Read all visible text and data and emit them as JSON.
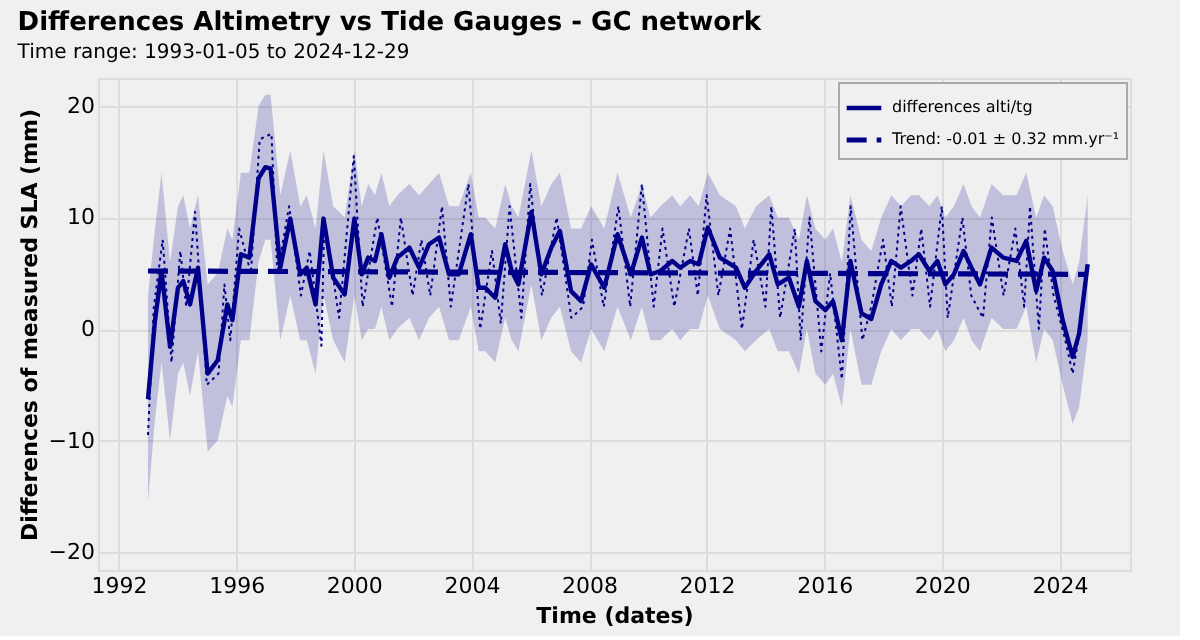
{
  "chart_data": {
    "type": "line",
    "title": "Differences Altimetry vs Tide Gauges - GC network",
    "subtitle": "Time range: 1993-01-05 to 2024-12-29",
    "xlabel": "Time (dates)",
    "ylabel": "Differences of measured SLA (mm)",
    "xlim": [
      1991.3,
      2026.4
    ],
    "xticks": [
      1992,
      1996,
      2000,
      2004,
      2008,
      2012,
      2016,
      2020,
      2024
    ],
    "ylim": [
      -21.6,
      22.5
    ],
    "yticks": [
      -20,
      -10,
      0,
      10,
      20
    ],
    "grid": true,
    "legend": "top right",
    "series": [
      {
        "name": null,
        "line_style": "dotted",
        "color": "#00008b",
        "x": [
          1993.0,
          1993.2,
          1993.5,
          1993.8,
          1994.1,
          1994.3,
          1994.6,
          1995.0,
          1995.4,
          1995.6,
          1995.8,
          1996.1,
          1996.5,
          1996.8,
          1997.2,
          1997.4,
          1997.8,
          1998.2,
          1998.5,
          1998.9,
          1999.0,
          1999.5,
          2000.0,
          2000.3,
          2000.8,
          2001.3,
          2001.6,
          2002.0,
          2002.3,
          2002.6,
          2003.0,
          2003.3,
          2003.9,
          2004.3,
          2004.7,
          2005.0,
          2005.3,
          2005.7,
          2006.0,
          2006.4,
          2006.9,
          2007.4,
          2007.8,
          2008.1,
          2008.5,
          2009.0,
          2009.4,
          2009.8,
          2010.2,
          2010.5,
          2010.9,
          2011.4,
          2011.7,
          2012.0,
          2012.4,
          2012.8,
          2013.2,
          2013.6,
          2014.0,
          2014.2,
          2014.5,
          2015.0,
          2015.2,
          2015.5,
          2015.9,
          2016.2,
          2016.6,
          2016.9,
          2017.3,
          2017.6,
          2018.0,
          2018.3,
          2018.6,
          2019.0,
          2019.3,
          2019.6,
          2020.0,
          2020.2,
          2020.7,
          2021.0,
          2021.4,
          2021.7,
          2022.1,
          2022.5,
          2022.8,
          2023.0,
          2023.3,
          2023.5,
          2023.8,
          2024.2,
          2024.45,
          2024.7,
          2024.95
        ],
        "values": [
          -9.5,
          2,
          8,
          -3,
          7,
          2,
          10.5,
          -5,
          -4,
          4,
          -1,
          9,
          5,
          17,
          17.5,
          5,
          11,
          3,
          7,
          -1.5,
          10,
          1,
          15.5,
          2,
          10,
          2,
          10,
          3,
          8,
          3,
          11,
          2,
          13,
          0,
          7,
          0.5,
          11,
          1,
          13,
          3,
          10,
          1,
          2,
          8,
          2,
          11,
          2,
          13,
          2,
          9,
          2,
          9,
          3,
          12,
          3,
          9,
          0,
          8,
          2,
          11,
          1,
          9,
          -1,
          10,
          -2,
          5,
          -4.5,
          11,
          -1,
          2,
          8,
          2,
          11,
          3,
          9,
          2,
          11,
          1,
          10,
          3,
          1,
          10,
          3,
          9,
          2,
          11,
          0,
          9,
          3,
          -1,
          -4,
          0,
          6
        ]
      },
      {
        "name": "differences alti/tg",
        "line_style": "solid",
        "color": "#00008b",
        "x": [
          1993.0,
          1993.24,
          1993.46,
          1993.75,
          1994.02,
          1994.2,
          1994.43,
          1994.7,
          1995.03,
          1995.37,
          1995.7,
          1995.87,
          1996.16,
          1996.45,
          1996.76,
          1996.99,
          1997.17,
          1997.5,
          1997.84,
          1998.18,
          1998.4,
          1998.7,
          1998.97,
          1999.3,
          1999.69,
          2000.02,
          2000.27,
          2000.49,
          2000.72,
          2000.94,
          2001.21,
          2001.48,
          2001.89,
          2002.22,
          2002.56,
          2002.9,
          2003.24,
          2003.57,
          2003.98,
          2004.25,
          2004.47,
          2004.81,
          2005.15,
          2005.37,
          2005.6,
          2006.04,
          2006.38,
          2006.72,
          2007.01,
          2007.39,
          2007.73,
          2008.07,
          2008.52,
          2008.97,
          2009.42,
          2009.8,
          2010.09,
          2010.43,
          2010.83,
          2011.1,
          2011.44,
          2011.73,
          2012.04,
          2012.45,
          2013.0,
          2013.3,
          2013.68,
          2014.13,
          2014.42,
          2014.8,
          2015.14,
          2015.41,
          2015.7,
          2016.04,
          2016.3,
          2016.6,
          2016.89,
          2017.27,
          2017.6,
          2017.94,
          2018.28,
          2018.61,
          2018.95,
          2019.22,
          2019.58,
          2019.85,
          2020.12,
          2020.41,
          2020.74,
          2021.01,
          2021.3,
          2021.69,
          2022.09,
          2022.54,
          2022.87,
          2023.21,
          2023.48,
          2023.77,
          2024.11,
          2024.45,
          2024.67,
          2024.96
        ],
        "values": [
          -6.3,
          0.8,
          5.2,
          -1.6,
          3.7,
          4.3,
          2.2,
          5.5,
          -4.0,
          -2.8,
          2.2,
          0.8,
          6.7,
          6.4,
          13.5,
          14.5,
          14.4,
          5.5,
          9.9,
          4.9,
          5.5,
          2.2,
          9.9,
          4.6,
          3.1,
          9.9,
          4.9,
          6.4,
          6.1,
          8.5,
          4.6,
          6.4,
          7.3,
          5.5,
          7.6,
          8.2,
          4.9,
          4.9,
          8.5,
          3.7,
          3.7,
          2.8,
          7.6,
          5.2,
          4.0,
          10.5,
          4.9,
          7.3,
          8.8,
          3.4,
          2.5,
          5.8,
          3.7,
          8.5,
          4.9,
          8.2,
          4.9,
          5.2,
          6.1,
          5.5,
          6.1,
          5.8,
          9.1,
          6.4,
          5.5,
          3.7,
          5.2,
          6.7,
          4.0,
          4.6,
          2.0,
          6.1,
          2.5,
          1.7,
          2.5,
          -1.0,
          6.1,
          1.4,
          0.9,
          4.0,
          6.1,
          5.5,
          6.1,
          6.7,
          5.2,
          6.1,
          4.0,
          4.9,
          7.0,
          5.5,
          4.0,
          7.3,
          6.4,
          6.1,
          7.9,
          3.4,
          6.4,
          5.2,
          0.8,
          -2.5,
          -0.4,
          5.8
        ],
        "lower": [
          -15.5,
          -8,
          -3,
          -10,
          -4,
          -3,
          -6,
          -2,
          -11,
          -10,
          -6,
          -7,
          -1,
          -1,
          6,
          8,
          8,
          -1,
          3,
          -1,
          -1,
          -4,
          3,
          -1,
          -3,
          3,
          -1,
          0,
          0,
          2,
          -1,
          0,
          1,
          -1,
          1,
          2,
          -1,
          -1,
          2,
          -2,
          -2,
          -3,
          1,
          -1,
          -2,
          4,
          -1,
          1,
          2,
          -2,
          -3,
          0,
          -2,
          2,
          -1,
          2,
          -1,
          -1,
          0,
          -1,
          0,
          0,
          3,
          0,
          -1,
          -2,
          -1,
          0,
          -2,
          -2,
          -4,
          0,
          -4,
          -5,
          -4,
          -7,
          0,
          -5,
          -5,
          -2,
          0,
          -1,
          0,
          0,
          -1,
          0,
          -2,
          -1,
          1,
          -1,
          -2,
          1,
          0,
          0,
          2,
          -3,
          0,
          -1,
          -5,
          -8.5,
          -7,
          -1
        ],
        "upper": [
          3,
          9,
          14,
          6,
          11,
          12,
          9,
          12,
          4,
          5,
          9,
          8,
          14,
          14,
          20,
          21,
          21,
          12,
          16,
          11,
          12,
          9,
          16,
          11,
          10,
          16,
          11,
          13,
          12,
          14,
          11,
          12,
          13,
          12,
          13,
          14,
          11,
          11,
          14,
          10,
          10,
          9,
          13,
          11,
          10,
          16,
          11,
          13,
          14,
          9,
          9,
          11,
          9,
          14,
          10,
          13,
          10,
          11,
          12,
          11,
          12,
          11,
          14,
          12,
          11,
          9,
          11,
          12,
          10,
          10,
          8,
          12,
          9,
          8,
          9,
          6,
          12,
          8,
          7,
          10,
          12,
          11,
          12,
          12,
          11,
          12,
          10,
          11,
          13,
          11,
          10,
          13,
          12,
          12,
          14,
          10,
          12,
          11,
          7,
          4,
          6,
          12
        ]
      },
      {
        "name": "Trend: -0.01 ± 0.32 mm.yr⁻¹",
        "line_style": "dashed",
        "color": "#00008b",
        "x": [
          1993.0,
          2024.96
        ],
        "values": [
          5.2,
          4.9
        ]
      }
    ]
  }
}
